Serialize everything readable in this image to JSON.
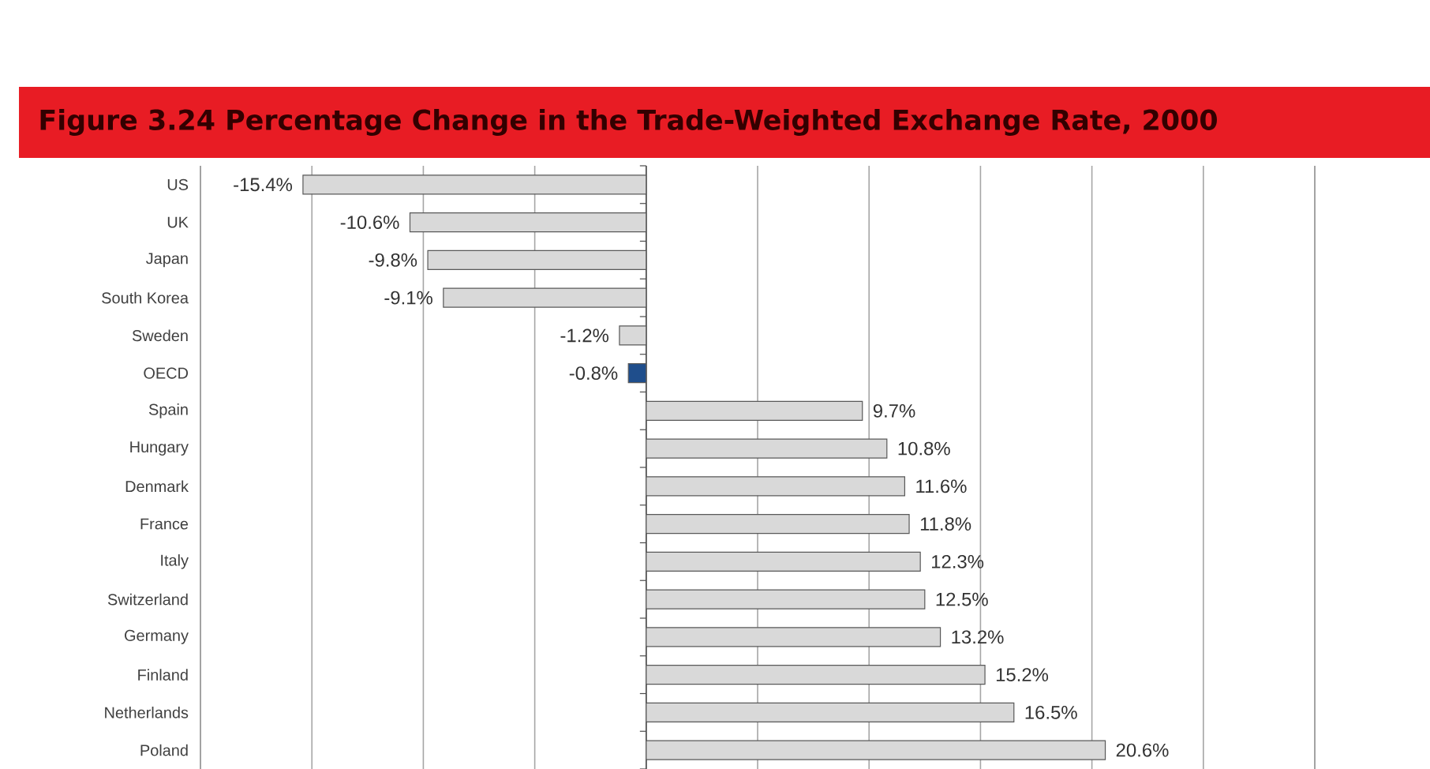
{
  "chart_data": {
    "type": "bar",
    "orientation": "horizontal",
    "title": "Figure 3.24 Percentage Change in the Trade-Weighted Exchange Rate, 2000",
    "categories": [
      "US",
      "UK",
      "Japan",
      "South Korea",
      "Sweden",
      "OECD",
      "Spain",
      "Hungary",
      "Denmark",
      "France",
      "Italy",
      "Switzerland",
      "Germany",
      "Finland",
      "Netherlands",
      "Poland"
    ],
    "values": [
      -15.4,
      -10.6,
      -9.8,
      -9.1,
      -1.2,
      -0.8,
      9.7,
      10.8,
      11.6,
      11.8,
      12.3,
      12.5,
      13.2,
      15.2,
      16.5,
      20.6
    ],
    "value_labels": [
      "-15.4%",
      "-10.6%",
      "-9.8%",
      "-9.1%",
      "-1.2%",
      "-0.8%",
      "9.7%",
      "10.8%",
      "11.6%",
      "11.8%",
      "12.3%",
      "12.5%",
      "13.2%",
      "15.2%",
      "16.5%",
      "20.6%"
    ],
    "colors": [
      "#d9d9d9",
      "#d9d9d9",
      "#d9d9d9",
      "#d9d9d9",
      "#d9d9d9",
      "#1f4e8c",
      "#d9d9d9",
      "#d9d9d9",
      "#d9d9d9",
      "#d9d9d9",
      "#d9d9d9",
      "#d9d9d9",
      "#d9d9d9",
      "#d9d9d9",
      "#d9d9d9",
      "#d9d9d9"
    ],
    "xlim": [
      -20,
      30
    ],
    "xticks": [
      {
        "value": -15,
        "label": null
      },
      {
        "value": -10,
        "label": null
      },
      {
        "value": -5,
        "label": null
      },
      {
        "value": 0,
        "label": null
      },
      {
        "value": 5,
        "label": null
      },
      {
        "value": 10,
        "label": null
      },
      {
        "value": 15,
        "label": null
      },
      {
        "value": 20,
        "label": null
      },
      {
        "value": 25,
        "label": null
      }
    ],
    "grid": "x",
    "tick_labels": "y"
  }
}
